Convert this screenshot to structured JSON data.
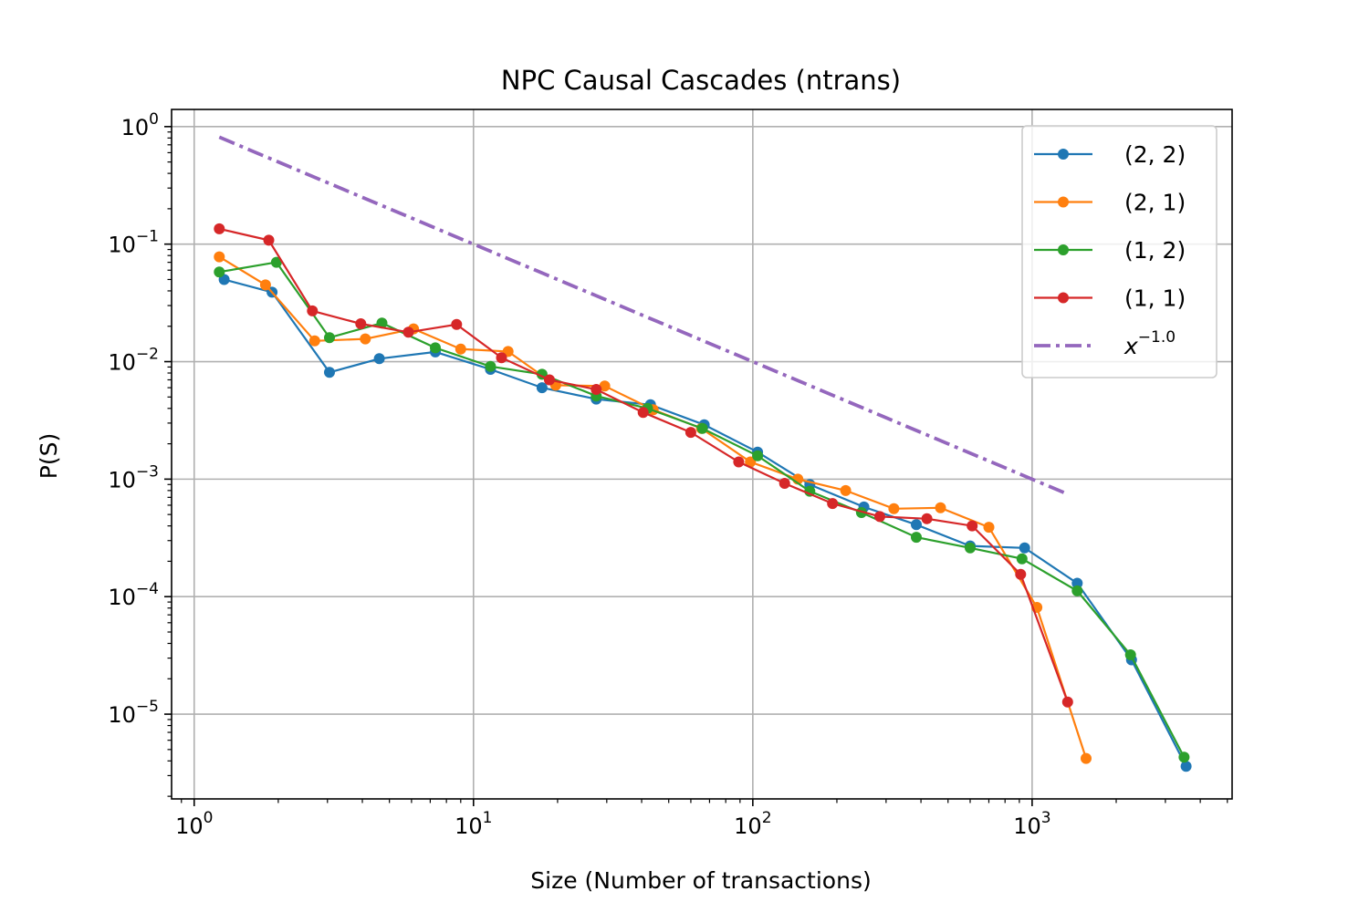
{
  "chart_data": {
    "type": "line",
    "title": "NPC Causal Cascades (ntrans)",
    "xlabel": "Size (Number of transactions)",
    "ylabel": "P(S)",
    "xscale": "log",
    "yscale": "log",
    "xlim": [
      0.83,
      5200
    ],
    "ylim": [
      1.9e-06,
      1.4
    ],
    "grid": true,
    "legend_position": "top-right",
    "x_ticks": [
      {
        "base": "10",
        "exp": "0"
      },
      {
        "base": "10",
        "exp": "1"
      },
      {
        "base": "10",
        "exp": "2"
      },
      {
        "base": "10",
        "exp": "3"
      }
    ],
    "y_ticks": [
      {
        "base": "10",
        "exp": "0"
      },
      {
        "base": "10",
        "exp": "−1"
      },
      {
        "base": "10",
        "exp": "−2"
      },
      {
        "base": "10",
        "exp": "−3"
      },
      {
        "base": "10",
        "exp": "−4"
      },
      {
        "base": "10",
        "exp": "−5"
      }
    ],
    "series": [
      {
        "name": "(2, 2)",
        "color": "#1f77b4",
        "x": [
          1.28,
          1.9,
          3.05,
          4.6,
          7.3,
          11.5,
          17.6,
          27.5,
          43,
          67,
          104,
          160,
          250,
          385,
          600,
          940,
          1450,
          2270,
          3560
        ],
        "y": [
          0.05,
          0.039,
          0.0081,
          0.0106,
          0.0121,
          0.0086,
          0.006,
          0.0048,
          0.0043,
          0.0029,
          0.0017,
          0.0009,
          0.00058,
          0.00041,
          0.00027,
          0.00026,
          0.00013,
          2.9e-05,
          3.6e-06
        ]
      },
      {
        "name": "(2, 1)",
        "color": "#ff7f0e",
        "x": [
          1.23,
          1.8,
          2.7,
          4.1,
          6.1,
          9,
          13.3,
          19.7,
          29.5,
          44,
          65.5,
          98,
          145,
          215,
          320,
          470,
          700,
          1040,
          1560
        ],
        "y": [
          0.078,
          0.045,
          0.015,
          0.0156,
          0.019,
          0.0128,
          0.0122,
          0.0063,
          0.0062,
          0.0039,
          0.0027,
          0.0014,
          0.001,
          0.0008,
          0.00056,
          0.00057,
          0.00039,
          8.1e-05,
          4.2e-06
        ]
      },
      {
        "name": "(1, 2)",
        "color": "#2ca02c",
        "x": [
          1.23,
          1.97,
          3.05,
          4.7,
          7.3,
          11.5,
          17.6,
          27.5,
          42,
          66,
          104,
          160,
          245,
          385,
          600,
          920,
          1450,
          2250,
          3500
        ],
        "y": [
          0.058,
          0.07,
          0.016,
          0.0213,
          0.0131,
          0.0091,
          0.0078,
          0.0051,
          0.004,
          0.0027,
          0.00158,
          0.00079,
          0.00052,
          0.00032,
          0.00026,
          0.00021,
          0.000112,
          3.2e-05,
          4.3e-06
        ]
      },
      {
        "name": "(1, 1)",
        "color": "#d62728",
        "x": [
          1.23,
          1.85,
          2.65,
          3.95,
          5.85,
          8.7,
          12.6,
          18.7,
          27.5,
          40.5,
          60,
          89,
          130,
          193,
          285,
          420,
          610,
          910,
          1340
        ],
        "y": [
          0.135,
          0.108,
          0.027,
          0.021,
          0.0178,
          0.0207,
          0.0108,
          0.007,
          0.0058,
          0.0037,
          0.0025,
          0.0014,
          0.00092,
          0.00062,
          0.00048,
          0.00046,
          0.0004,
          0.000155,
          1.27e-05
        ]
      },
      {
        "name_base": "x",
        "name_exp": "−1.0",
        "color": "#9467bd",
        "style": "dashdot",
        "x": [
          1.23,
          1340
        ],
        "y": [
          0.813,
          0.000746
        ]
      }
    ]
  }
}
